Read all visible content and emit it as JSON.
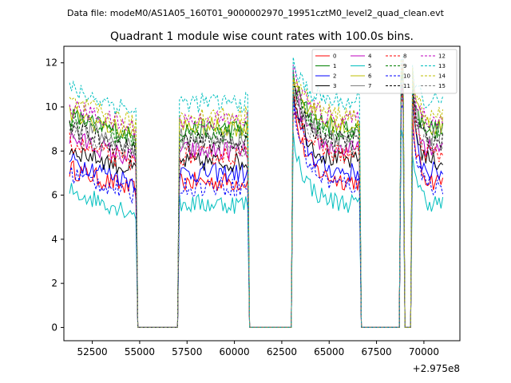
{
  "header": {
    "data_file": "Data file: modeM0/AS1A05_160T01_9000002970_19951cztM0_level2_quad_clean.evt"
  },
  "chart_data": {
    "type": "line",
    "title": "Quadrant 1 module wise count rates with 100.0s bins.",
    "xlabel": "",
    "ylabel": "",
    "x_offset_label": "+2.975e8",
    "xlim": [
      51000,
      71900
    ],
    "ylim": [
      -0.6,
      12.75
    ],
    "xticks": [
      52500,
      55000,
      57500,
      60000,
      62500,
      65000,
      67500,
      70000
    ],
    "xtick_labels": [
      "52500",
      "55000",
      "57500",
      "60000",
      "62500",
      "65000",
      "67500",
      "70000"
    ],
    "yticks": [
      0,
      2,
      4,
      6,
      8,
      10,
      12
    ],
    "ytick_labels": [
      "0",
      "2",
      "4",
      "6",
      "8",
      "10",
      "12"
    ],
    "segments": [
      {
        "start": 51300,
        "end": 54800
      },
      {
        "start": 57100,
        "end": 60700
      },
      {
        "start": 63100,
        "end": 66600
      },
      {
        "start": 68750,
        "end": 68950
      },
      {
        "start": 69350,
        "end": 71050
      }
    ],
    "zero_level": 0.0,
    "series": [
      {
        "name": "0",
        "color": "#ff0000",
        "dash": "solid",
        "level": 6.6,
        "spike": 10.0
      },
      {
        "name": "1",
        "color": "#008000",
        "dash": "solid",
        "level": 9.0,
        "spike": 11.4
      },
      {
        "name": "2",
        "color": "#0000ff",
        "dash": "solid",
        "level": 7.0,
        "spike": 10.4
      },
      {
        "name": "3",
        "color": "#000000",
        "dash": "solid",
        "level": 7.5,
        "spike": 10.8
      },
      {
        "name": "4",
        "color": "#bf00bf",
        "dash": "solid",
        "level": 8.0,
        "spike": 11.0
      },
      {
        "name": "5",
        "color": "#00bfbf",
        "dash": "solid",
        "level": 5.6,
        "spike": 8.6
      },
      {
        "name": "6",
        "color": "#bfbf00",
        "dash": "solid",
        "level": 9.1,
        "spike": 11.6
      },
      {
        "name": "7",
        "color": "#808080",
        "dash": "solid",
        "level": 8.6,
        "spike": 11.0
      },
      {
        "name": "8",
        "color": "#ff0000",
        "dash": "dashed",
        "level": 7.8,
        "spike": 10.6
      },
      {
        "name": "9",
        "color": "#008000",
        "dash": "dashed",
        "level": 8.8,
        "spike": 11.3
      },
      {
        "name": "10",
        "color": "#0000ff",
        "dash": "dashed",
        "level": 6.4,
        "spike": 10.0
      },
      {
        "name": "11",
        "color": "#000000",
        "dash": "dashed",
        "level": 8.4,
        "spike": 11.0
      },
      {
        "name": "12",
        "color": "#bf00bf",
        "dash": "dashed",
        "level": 9.4,
        "spike": 11.8
      },
      {
        "name": "13",
        "color": "#00bfbf",
        "dash": "dashed",
        "level": 10.2,
        "spike": 12.0
      },
      {
        "name": "14",
        "color": "#bfbf00",
        "dash": "dashed",
        "level": 9.6,
        "spike": 11.7
      },
      {
        "name": "15",
        "color": "#808080",
        "dash": "dashed",
        "level": 8.2,
        "spike": 10.8
      }
    ]
  }
}
